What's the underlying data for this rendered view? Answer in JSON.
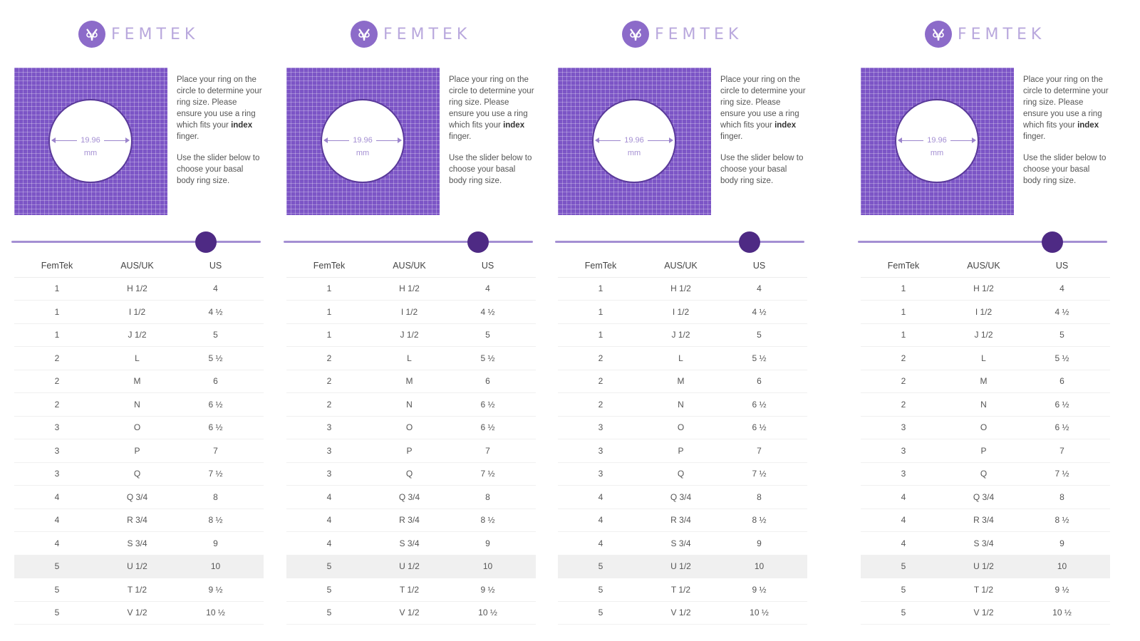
{
  "brand": {
    "name": "FEMTEK",
    "logo_color": "#8c6bc9"
  },
  "ring": {
    "value": "19.96",
    "unit": "mm"
  },
  "instructions": {
    "p1_before": "Place your ring on the circle to determine your ring size. Please ensure you use a ring which fits your ",
    "p1_bold": "index",
    "p1_after": " finger.",
    "p2": "Use the slider below to choose your basal body ring size."
  },
  "slider": {
    "position": 0.78,
    "accent": "#4e2a84"
  },
  "table": {
    "headers": [
      "FemTek",
      "AUS/UK",
      "US"
    ],
    "rows": [
      [
        "1",
        "H 1/2",
        "4"
      ],
      [
        "1",
        "I 1/2",
        "4 ½"
      ],
      [
        "1",
        "J 1/2",
        "5"
      ],
      [
        "2",
        "L",
        "5 ½"
      ],
      [
        "2",
        "M",
        "6"
      ],
      [
        "2",
        "N",
        "6 ½"
      ],
      [
        "3",
        "O",
        "6 ½"
      ],
      [
        "3",
        "P",
        "7"
      ],
      [
        "3",
        "Q",
        "7 ½"
      ],
      [
        "4",
        "Q 3/4",
        "8"
      ],
      [
        "4",
        "R 3/4",
        "8 ½"
      ],
      [
        "4",
        "S 3/4",
        "9"
      ],
      [
        "5",
        "U 1/2",
        "10"
      ],
      [
        "5",
        "T 1/2",
        "9 ½"
      ],
      [
        "5",
        "V 1/2",
        "10 ½"
      ]
    ],
    "highlighted_row": 12
  },
  "screens": [
    {
      "id": "screen-1"
    },
    {
      "id": "screen-2"
    },
    {
      "id": "screen-3"
    },
    {
      "id": "screen-4"
    }
  ]
}
